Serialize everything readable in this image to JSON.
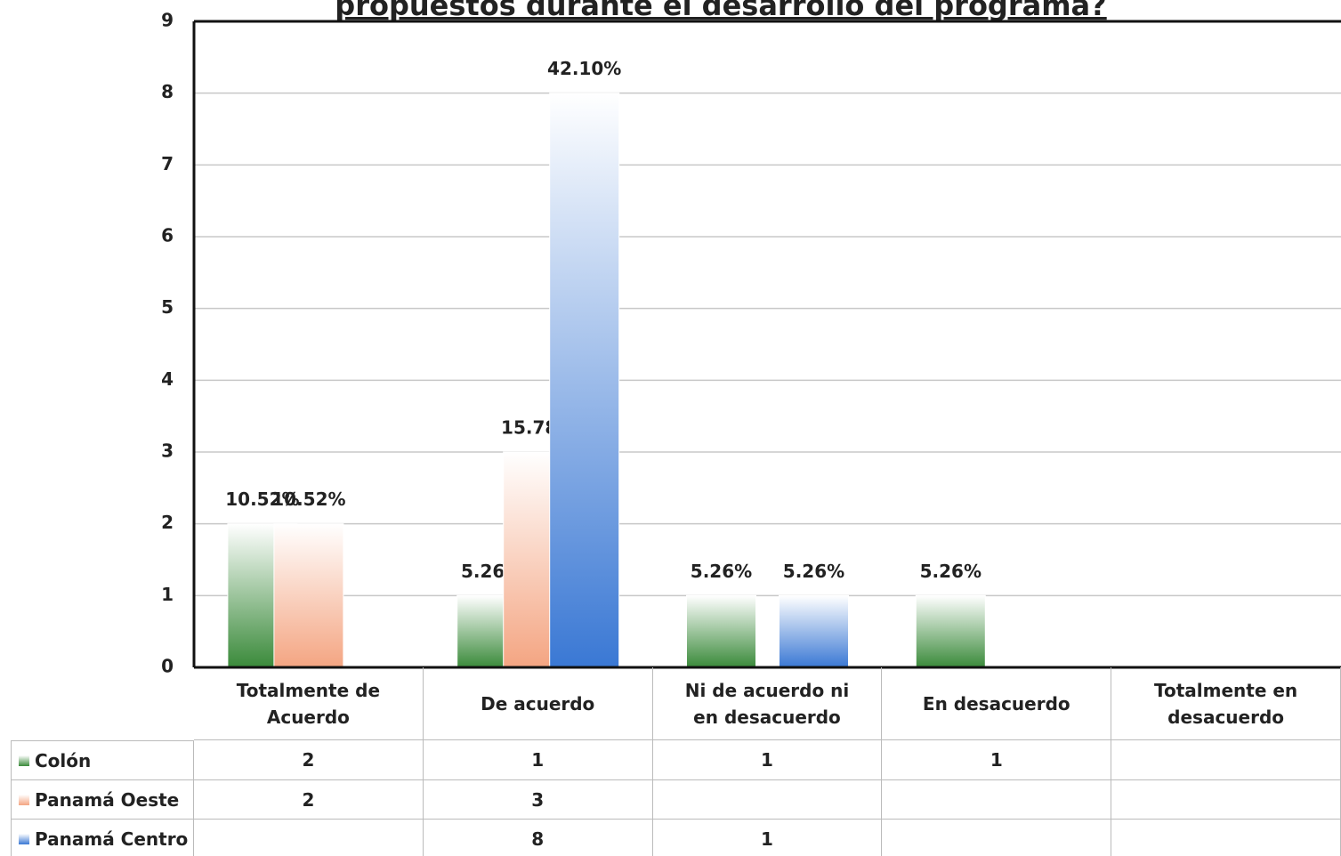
{
  "chart_data": {
    "type": "bar",
    "title": "propuestos durante el desarrollo del programa?",
    "categories": [
      "Totalmente de Acuerdo",
      "De acuerdo",
      "Ni de acuerdo ni en desacuerdo",
      "En desacuerdo",
      "Totalmente en desacuerdo"
    ],
    "series": [
      {
        "name": "Colón",
        "color": "#3a8a3a",
        "values": [
          2,
          1,
          1,
          1,
          null
        ],
        "value_labels": [
          "10.52%",
          "5.26%",
          "5.26%",
          "5.26%",
          null
        ]
      },
      {
        "name": "Panamá Oeste",
        "color": "#f4a582",
        "values": [
          2,
          3,
          null,
          null,
          null
        ],
        "value_labels": [
          "10.52%",
          "15.78%",
          null,
          null,
          null
        ]
      },
      {
        "name": "Panamá Centro",
        "color": "#3a78d4",
        "values": [
          null,
          8,
          1,
          null,
          null
        ],
        "value_labels": [
          null,
          "42.10%",
          "5.26%",
          null,
          null
        ]
      }
    ],
    "ylim": [
      0,
      9
    ],
    "yticks": [
      0,
      1,
      2,
      3,
      4,
      5,
      6,
      7,
      8,
      9
    ],
    "grid": true
  }
}
